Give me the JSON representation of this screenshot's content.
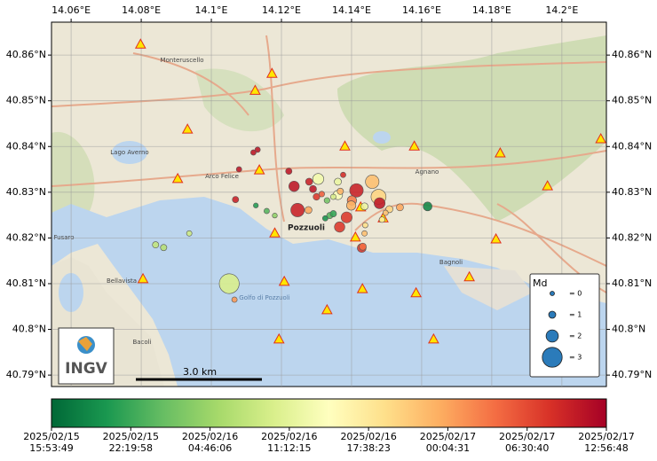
{
  "map": {
    "xlim": [
      14.0544,
      14.2127
    ],
    "ylim": [
      40.7875,
      40.8672
    ],
    "xticks": [
      {
        "value": 14.06,
        "label": "14.06°E"
      },
      {
        "value": 14.08,
        "label": "14.08°E"
      },
      {
        "value": 14.1,
        "label": "14.1°E"
      },
      {
        "value": 14.12,
        "label": "14.12°E"
      },
      {
        "value": 14.14,
        "label": "14.14°E"
      },
      {
        "value": 14.16,
        "label": "14.16°E"
      },
      {
        "value": 14.18,
        "label": "14.18°E"
      },
      {
        "value": 14.2,
        "label": "14.2°E"
      }
    ],
    "yticks": [
      {
        "value": 40.86,
        "label": "40.86°N"
      },
      {
        "value": 40.85,
        "label": "40.85°N"
      },
      {
        "value": 40.84,
        "label": "40.84°N"
      },
      {
        "value": 40.83,
        "label": "40.83°N"
      },
      {
        "value": 40.82,
        "label": "40.82°N"
      },
      {
        "value": 40.81,
        "label": "40.81°N"
      },
      {
        "value": 40.8,
        "label": "40.8°N"
      },
      {
        "value": 40.79,
        "label": "40.79°N"
      }
    ],
    "grid": true,
    "places": [
      "Monteruscello",
      "Lago Averno",
      "Arco Felice",
      "Pozzuoli",
      "Agnano",
      "Bagnoli",
      "Bellavista",
      "Bacoli",
      "Fusaro",
      "Golfo di Pozzuoli"
    ],
    "stations": {
      "lon": [
        14.0798,
        14.1173,
        14.1125,
        14.0932,
        14.0904,
        14.1137,
        14.1381,
        14.1579,
        14.1824,
        14.2111,
        14.1959,
        14.1181,
        14.1426,
        14.149,
        14.1411,
        14.1812,
        14.0805,
        14.1208,
        14.1431,
        14.1584,
        14.1736,
        14.133,
        14.1193,
        14.1634
      ],
      "lat": [
        40.8623,
        40.8559,
        40.8522,
        40.8437,
        40.8329,
        40.8348,
        40.84,
        40.84,
        40.8385,
        40.8416,
        40.8313,
        40.821,
        40.8267,
        40.8243,
        40.8201,
        40.8197,
        40.811,
        40.8104,
        40.8088,
        40.8079,
        40.8114,
        40.8042,
        40.7978,
        40.7978
      ]
    },
    "events": {
      "lon": [
        14.1051,
        14.1066,
        14.0841,
        14.0864,
        14.0937,
        14.1069,
        14.1127,
        14.1158,
        14.1181,
        14.1246,
        14.1277,
        14.1221,
        14.1079,
        14.1132,
        14.112,
        14.1236,
        14.1279,
        14.129,
        14.1305,
        14.13,
        14.1315,
        14.133,
        14.1348,
        14.1361,
        14.1368,
        14.1361,
        14.1338,
        14.1348,
        14.1325,
        14.1386,
        14.1366,
        14.1401,
        14.1414,
        14.1399,
        14.1459,
        14.1477,
        14.148,
        14.1437,
        14.1508,
        14.1538,
        14.1497,
        14.1487,
        14.1429,
        14.1432,
        14.1437,
        14.1439,
        14.1617,
        14.1376
      ],
      "lat": [
        40.81,
        40.8065,
        40.8185,
        40.8179,
        40.821,
        40.8284,
        40.8271,
        40.8259,
        40.8249,
        40.8261,
        40.8261,
        40.8346,
        40.835,
        40.8393,
        40.8387,
        40.8313,
        40.8323,
        40.8307,
        40.8329,
        40.829,
        40.8296,
        40.8282,
        40.829,
        40.8294,
        40.8302,
        40.8323,
        40.8249,
        40.8253,
        40.8243,
        40.8245,
        40.8224,
        40.8282,
        40.8304,
        40.8271,
        40.8323,
        40.829,
        40.8276,
        40.8269,
        40.8263,
        40.8267,
        40.8255,
        40.824,
        40.8178,
        40.8181,
        40.821,
        40.8228,
        40.8269,
        40.8338
      ],
      "md": [
        3,
        0.5,
        0.8,
        0.8,
        0.5,
        0.8,
        0.3,
        0.5,
        0.3,
        2.2,
        1,
        0.8,
        0.5,
        0.5,
        0.5,
        1.7,
        1,
        1,
        1.8,
        0.9,
        0.6,
        0.6,
        0.5,
        1.5,
        0.8,
        1,
        0.8,
        0.8,
        0.5,
        1.8,
        1.7,
        1.5,
        2.2,
        1.5,
        2.2,
        2.4,
        1.8,
        1,
        1,
        1,
        0.5,
        0.6,
        1.4,
        1,
        0.5,
        0.5,
        1.4,
        0.5
      ],
      "time": [
        18,
        33,
        16,
        15,
        17,
        42,
        5,
        8,
        12,
        42,
        32,
        43,
        43,
        43,
        43,
        43,
        42,
        43,
        21,
        40,
        37,
        10,
        18,
        22,
        31,
        20,
        8,
        6,
        4,
        40,
        40,
        35,
        42,
        31,
        30,
        28,
        43,
        20,
        28,
        32,
        30,
        25,
        40,
        36,
        30,
        27,
        3,
        41
      ]
    },
    "legend": {
      "title": "Md",
      "sizes": [
        {
          "value": 0,
          "label": "= 0"
        },
        {
          "value": 1,
          "label": "= 1"
        },
        {
          "value": 2,
          "label": "= 2"
        },
        {
          "value": 3,
          "label": "= 3"
        }
      ]
    },
    "scale_bar": "3.0 km",
    "logo": "INGV",
    "colorbar": {
      "clim": [
        0,
        45.0497
      ],
      "colors": [
        "#006837",
        "#1a9850",
        "#66bd63",
        "#a6d96a",
        "#d9ef8b",
        "#ffffbf",
        "#fee08b",
        "#fdae61",
        "#f46d43",
        "#d73027",
        "#a50026"
      ],
      "ticks": [
        {
          "value": 0,
          "label": "2025/02/15 15:53:49"
        },
        {
          "value": 6.4358,
          "label": "2025/02/15 22:19:58"
        },
        {
          "value": 12.8717,
          "label": "2025/02/16 04:46:06"
        },
        {
          "value": 19.3075,
          "label": "2025/02/16 11:12:15"
        },
        {
          "value": 25.7433,
          "label": "2025/02/16 17:38:23"
        },
        {
          "value": 32.1792,
          "label": "2025/02/17 00:04:31"
        },
        {
          "value": 38.615,
          "label": "2025/02/17 06:30:40"
        },
        {
          "value": 45.0497,
          "label": "2025/02/17 12:56:48"
        }
      ]
    }
  }
}
